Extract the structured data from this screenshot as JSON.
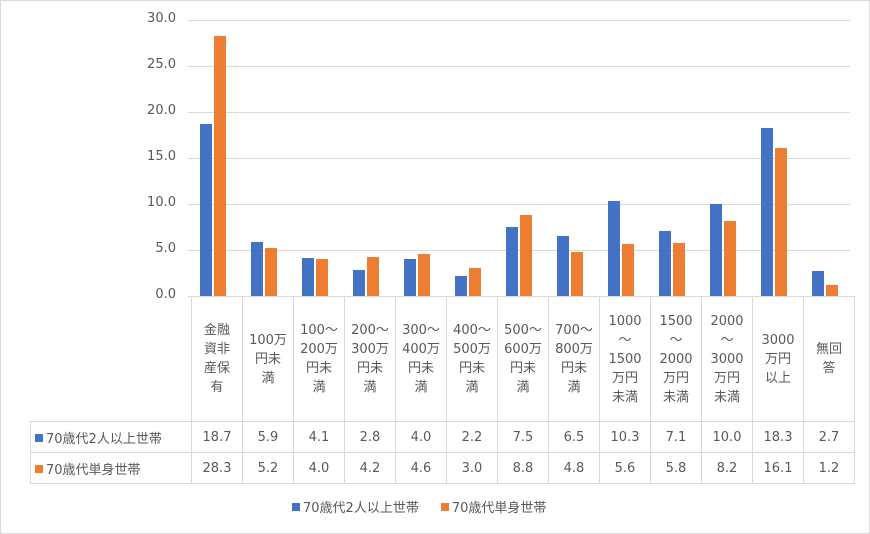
{
  "chart_data": {
    "type": "bar",
    "title": "",
    "xlabel": "",
    "ylabel": "",
    "ylim": [
      0,
      30
    ],
    "yticks": [
      "0.0",
      "5.0",
      "10.0",
      "15.0",
      "20.0",
      "25.0",
      "30.0"
    ],
    "grid": true,
    "legend_position": "bottom",
    "categories": [
      "金融資非産保有",
      "100万円未満",
      "100～200万円未満",
      "200～300万円未満",
      "300～400万円未満",
      "400～500万円未満",
      "500～600万円未満",
      "700～800万円未満",
      "1000～1500万円未満",
      "1500～2000万円未満",
      "2000～3000万円未満",
      "3000万円以上",
      "無回答"
    ],
    "category_lines": [
      [
        "金融",
        "資非",
        "産保",
        "有"
      ],
      [
        "100万",
        "円未",
        "満"
      ],
      [
        "100～",
        "200万",
        "円未",
        "満"
      ],
      [
        "200～",
        "300万",
        "円未",
        "満"
      ],
      [
        "300～",
        "400万",
        "円未",
        "満"
      ],
      [
        "400～",
        "500万",
        "円未",
        "満"
      ],
      [
        "500～",
        "600万",
        "円未",
        "満"
      ],
      [
        "700～",
        "800万",
        "円未",
        "満"
      ],
      [
        "1000",
        "～",
        "1500",
        "万円",
        "未満"
      ],
      [
        "1500",
        "～",
        "2000",
        "万円",
        "未満"
      ],
      [
        "2000",
        "～",
        "3000",
        "万円",
        "未満"
      ],
      [
        "3000",
        "万円",
        "以上"
      ],
      [
        "無回",
        "答"
      ]
    ],
    "series": [
      {
        "name": "70歳代2人以上世帯",
        "color": "#4472c4",
        "values": [
          18.7,
          5.9,
          4.1,
          2.8,
          4.0,
          2.2,
          7.5,
          6.5,
          10.3,
          7.1,
          10.0,
          18.3,
          2.7
        ],
        "labels": [
          "18.7",
          "5.9",
          "4.1",
          "2.8",
          "4.0",
          "2.2",
          "7.5",
          "6.5",
          "10.3",
          "7.1",
          "10.0",
          "18.3",
          "2.7"
        ]
      },
      {
        "name": "70歳代単身世帯",
        "color": "#ed7d31",
        "values": [
          28.3,
          5.2,
          4.0,
          4.2,
          4.6,
          3.0,
          8.8,
          4.8,
          5.6,
          5.8,
          8.2,
          16.1,
          1.2
        ],
        "labels": [
          "28.3",
          "5.2",
          "4.0",
          "4.2",
          "4.6",
          "3.0",
          "8.8",
          "4.8",
          "5.6",
          "5.8",
          "8.2",
          "16.1",
          "1.2"
        ]
      }
    ]
  }
}
